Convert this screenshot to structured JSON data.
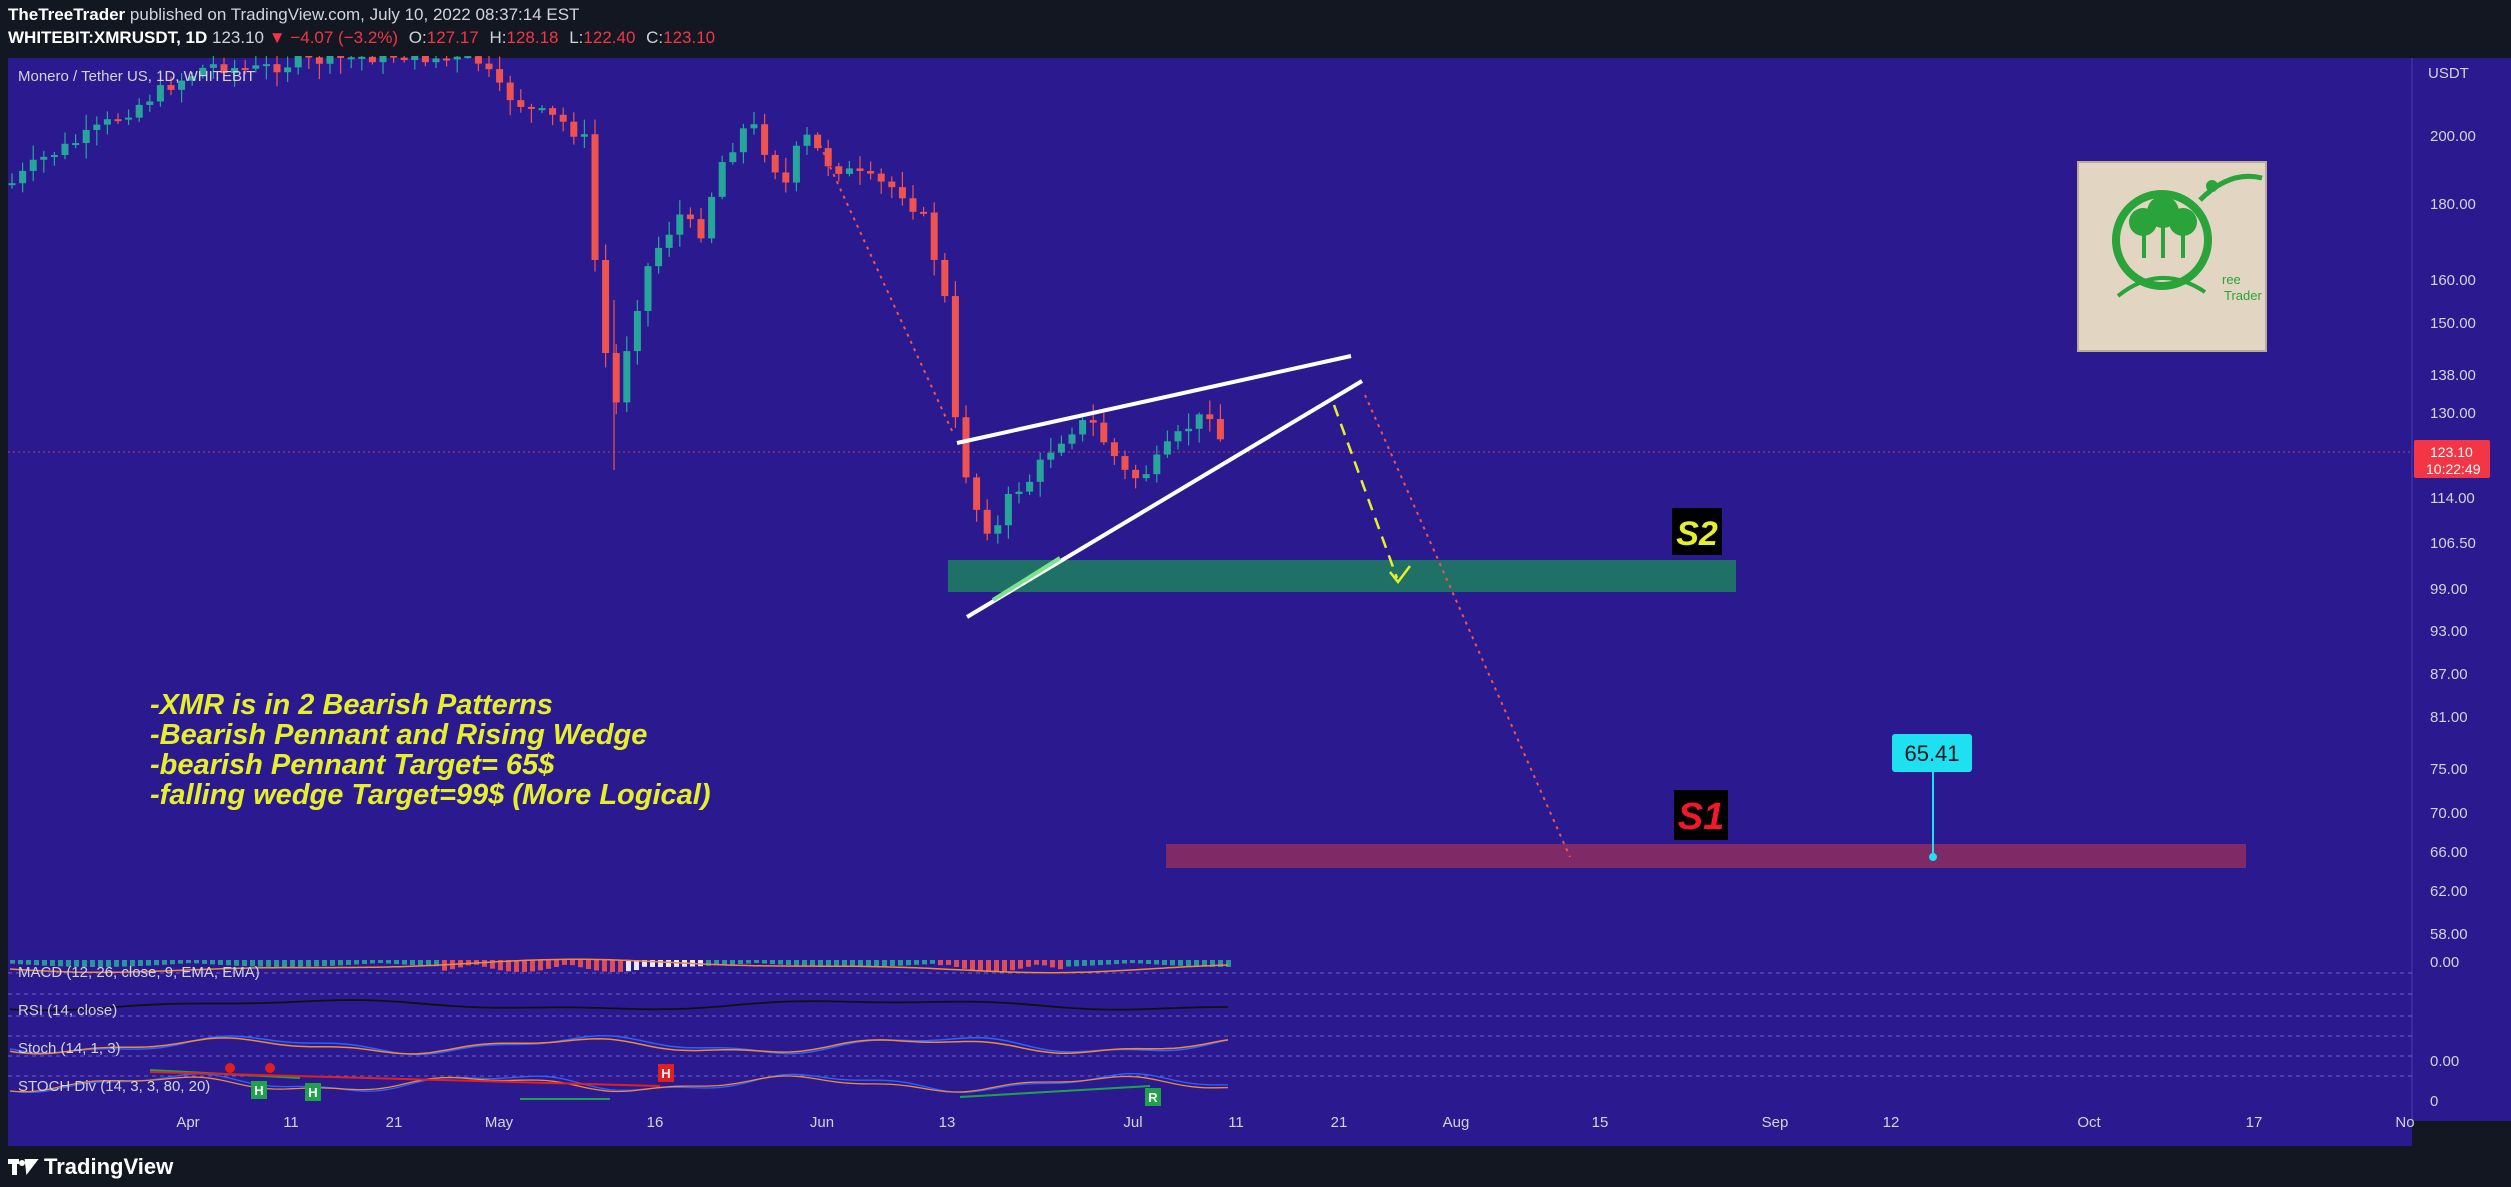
{
  "header": {
    "author": "TheTreeTrader",
    "published_text": "published on TradingView.com, July 10, 2022 08:37:14 EST",
    "symbol": "WHITEBIT:XMRUSDT, 1D",
    "last": "123.10",
    "change": "−4.07 (−3.2%)",
    "ohlc": {
      "O": "127.17",
      "H": "128.18",
      "L": "122.40",
      "C": "123.10"
    }
  },
  "chart": {
    "pair_label": "Monero / Tether US, 1D, WHITEBIT",
    "currency": "USDT",
    "price_ticks": [
      "200.00",
      "180.00",
      "160.00",
      "150.00",
      "138.00",
      "130.00",
      "114.00",
      "106.50",
      "99.00",
      "93.00",
      "87.00",
      "81.00",
      "75.00",
      "70.00",
      "66.00",
      "62.00",
      "58.00"
    ],
    "price_tag": {
      "value": "123.10",
      "countdown": "10:22:49"
    },
    "time_labels": [
      "Apr",
      "11",
      "21",
      "May",
      "16",
      "Jun",
      "13",
      "Jul",
      "11",
      "21",
      "Aug",
      "15",
      "Sep",
      "12",
      "Oct",
      "17",
      "No"
    ],
    "zones": {
      "s2_label": "S2",
      "s1_label": "S1"
    },
    "target_callout": "65.41",
    "analysis_lines": [
      "-XMR is in 2 Bearish Patterns",
      "-Bearish Pennant and Rising Wedge",
      "-bearish Pennant Target= 65$",
      "-falling wedge Target=99$ (More Logical)"
    ],
    "logo_text": [
      "ree",
      "Trader"
    ]
  },
  "indicators": {
    "macd": {
      "label": "MACD (12, 26, close, 9, EMA, EMA)",
      "scale": "0.00"
    },
    "rsi": {
      "label": "RSI (14, close)"
    },
    "stoch": {
      "label": "Stoch (14, 1, 3)",
      "scale": "0.00"
    },
    "stoch_div": {
      "label": "STOCH Div (14, 3, 3, 80, 20)",
      "scale": "0",
      "markers": [
        "H",
        "H",
        "H",
        "R"
      ]
    }
  },
  "footer": {
    "brand": "TradingView"
  },
  "colors": {
    "chart_bg": "#2b1a8f",
    "up": "#26a69a",
    "down": "#ef5350",
    "s2_zone": "#1e7a62",
    "s1_zone": "#8a2b63",
    "annotation": "#e6f02a",
    "callout": "#1ee0f0"
  }
}
